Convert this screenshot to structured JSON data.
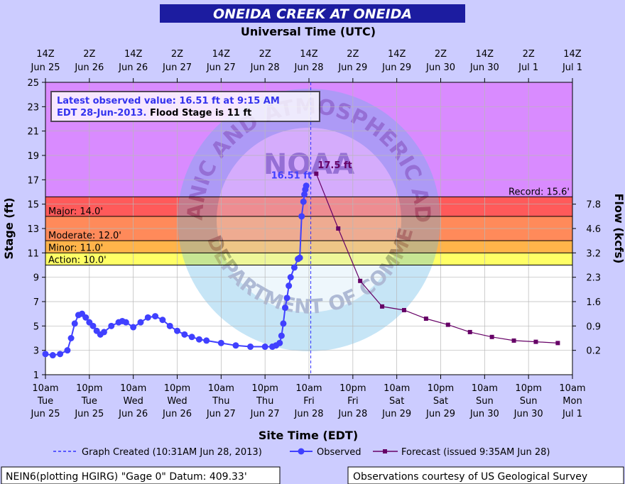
{
  "title": "ONEIDA CREEK AT ONEIDA",
  "utc_axis_title": "Universal Time (UTC)",
  "site_axis_title": "Site Time (EDT)",
  "y_left_label": "Stage (ft)",
  "y_right_label": "Flow (kcfs)",
  "top_ticks": [
    [
      "14Z",
      "Jun 25"
    ],
    [
      "2Z",
      "Jun 26"
    ],
    [
      "14Z",
      "Jun 26"
    ],
    [
      "2Z",
      "Jun 27"
    ],
    [
      "14Z",
      "Jun 27"
    ],
    [
      "2Z",
      "Jun 28"
    ],
    [
      "14Z",
      "Jun 28"
    ],
    [
      "2Z",
      "Jun 29"
    ],
    [
      "14Z",
      "Jun 29"
    ],
    [
      "2Z",
      "Jun 30"
    ],
    [
      "14Z",
      "Jun 30"
    ],
    [
      "2Z",
      "Jul 1"
    ],
    [
      "14Z",
      "Jul 1"
    ]
  ],
  "bottom_ticks": [
    [
      "10am",
      "Tue",
      "Jun 25"
    ],
    [
      "10pm",
      "Tue",
      "Jun 25"
    ],
    [
      "10am",
      "Wed",
      "Jun 26"
    ],
    [
      "10pm",
      "Wed",
      "Jun 26"
    ],
    [
      "10am",
      "Thu",
      "Jun 27"
    ],
    [
      "10pm",
      "Thu",
      "Jun 27"
    ],
    [
      "10am",
      "Fri",
      "Jun 28"
    ],
    [
      "10pm",
      "Fri",
      "Jun 28"
    ],
    [
      "10am",
      "Sat",
      "Jun 29"
    ],
    [
      "10pm",
      "Sat",
      "Jun 29"
    ],
    [
      "10am",
      "Sun",
      "Jun 30"
    ],
    [
      "10pm",
      "Sun",
      "Jun 30"
    ],
    [
      "10am",
      "Mon",
      "Jul 1"
    ]
  ],
  "annotation": {
    "line1": "Latest observed value: 16.51 ft at 9:15 AM",
    "line2a": "EDT 28-Jun-2013.",
    "line2b": " Flood Stage is 11 ft"
  },
  "watermark": {
    "ring_text": "NATIONAL OCEANIC AND ATMOSPHERIC ADMINISTRATION",
    "center_text": "NOAA",
    "bottom_text": "U.S. DEPARTMENT OF COMMERCE"
  },
  "legend": {
    "created": "Graph Created (10:31AM Jun 28, 2013)",
    "observed": "Observed",
    "forecast": "Forecast (issued 9:35AM Jun 28)"
  },
  "footer": {
    "left": "NEIN6(plotting HGIRG) \"Gage 0\" Datum: 409.33'",
    "right": "Observations courtesy of US Geological Survey"
  },
  "colors": {
    "background": "#ccccff",
    "plot_bg": "#ffffff",
    "title_bar": "#1c1ca0",
    "record_zone": "#d98bff",
    "major_zone": "#ff5a5a",
    "moderate_zone": "#ff8a5a",
    "minor_zone": "#ffb44a",
    "action_zone": "#ffff66",
    "observed": "#4040ff",
    "forecast": "#660066",
    "created_line": "#3333ff"
  },
  "chart_data": {
    "type": "line",
    "x_unit": "hours after 10am EDT Tue Jun 25, 2013",
    "xlim": [
      0,
      144
    ],
    "ylim": [
      1,
      25
    ],
    "y_ticks": [
      1,
      3,
      5,
      7,
      9,
      11,
      13,
      15,
      17,
      19,
      21,
      23,
      25
    ],
    "grid": true,
    "graph_created_x": 72.5,
    "zones": [
      {
        "name": "Record",
        "label": "Record: 15.6'",
        "from": 15.6,
        "to": 25
      },
      {
        "name": "Major",
        "label": "Major: 14.0'",
        "from": 14.0,
        "to": 15.6
      },
      {
        "name": "Moderate",
        "label": "Moderate: 12.0'",
        "from": 12.0,
        "to": 14.0
      },
      {
        "name": "Minor",
        "label": "Minor: 11.0'",
        "from": 11.0,
        "to": 12.0
      },
      {
        "name": "Action",
        "label": "Action: 10.0'",
        "from": 10.0,
        "to": 11.0
      }
    ],
    "right_axis": {
      "label": "Flow (kcfs)",
      "ticks": [
        {
          "stage": 15.0,
          "label": "7.8"
        },
        {
          "stage": 13.0,
          "label": "4.6"
        },
        {
          "stage": 11.0,
          "label": "3.2"
        },
        {
          "stage": 9.0,
          "label": "2.3"
        },
        {
          "stage": 7.0,
          "label": "1.6"
        },
        {
          "stage": 5.0,
          "label": "0.9"
        },
        {
          "stage": 3.0,
          "label": "0.2"
        }
      ]
    },
    "series": [
      {
        "name": "Observed",
        "x": [
          0,
          2,
          4,
          6,
          7,
          8,
          9,
          10,
          11,
          12,
          13,
          14,
          15,
          16,
          18,
          20,
          21,
          22,
          24,
          26,
          28,
          30,
          32,
          34,
          36,
          38,
          40,
          42,
          44,
          48,
          52,
          56,
          60,
          62,
          63,
          64,
          64.5,
          65,
          65.5,
          66,
          66.5,
          67,
          68,
          69,
          69.5,
          70,
          70.5,
          70.75,
          71,
          71.25
        ],
        "y": [
          2.7,
          2.6,
          2.7,
          3.0,
          4.0,
          5.2,
          5.9,
          6.0,
          5.7,
          5.3,
          5.0,
          4.6,
          4.3,
          4.5,
          5.0,
          5.3,
          5.4,
          5.3,
          4.9,
          5.3,
          5.7,
          5.8,
          5.5,
          5.0,
          4.6,
          4.3,
          4.1,
          3.9,
          3.8,
          3.6,
          3.4,
          3.3,
          3.3,
          3.3,
          3.4,
          3.6,
          4.2,
          5.2,
          6.5,
          7.3,
          8.3,
          9.0,
          9.8,
          10.5,
          10.6,
          14.0,
          15.2,
          15.8,
          16.2,
          16.51
        ],
        "point_label": "16.51 ft",
        "color": "#4040ff"
      },
      {
        "name": "Forecast",
        "x": [
          74,
          80,
          86,
          92,
          98,
          104,
          110,
          116,
          122,
          128,
          134,
          140
        ],
        "y": [
          17.5,
          13.0,
          8.7,
          6.6,
          6.3,
          5.6,
          5.1,
          4.5,
          4.1,
          3.8,
          3.7,
          3.6
        ],
        "point_label": "17.5 ft",
        "color": "#660066"
      }
    ]
  }
}
